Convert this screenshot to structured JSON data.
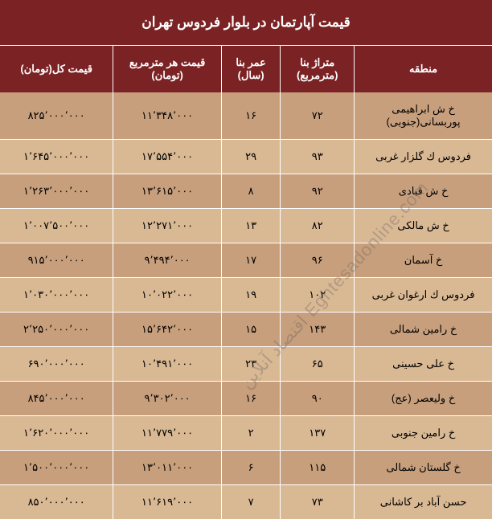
{
  "title": "قیمت آپارتمان در بلوار فردوس تهران",
  "columns": [
    "منطقه",
    "متراژ بنا (مترمربع)",
    "عمر بنا (سال)",
    "قیمت هر مترمربع (تومان)",
    "قیمت کل(تومان)"
  ],
  "rows": [
    {
      "area": "خ ش ابراهیمی پوربسانی(جنوبی)",
      "size": "۷۲",
      "age": "۱۶",
      "ppm": "۱۱٬۳۴۸٬۰۰۰",
      "total": "۸۲۵٬۰۰۰٬۰۰۰"
    },
    {
      "area": "فردوس ك گلزار غربی",
      "size": "۹۳",
      "age": "۲۹",
      "ppm": "۱۷٬۵۵۴٬۰۰۰",
      "total": "۱٬۶۴۵٬۰۰۰٬۰۰۰"
    },
    {
      "area": "خ ش قبادی",
      "size": "۹۲",
      "age": "۸",
      "ppm": "۱۳٬۶۱۵٬۰۰۰",
      "total": "۱٬۲۶۳٬۰۰۰٬۰۰۰"
    },
    {
      "area": "خ ش مالکی",
      "size": "۸۲",
      "age": "۱۳",
      "ppm": "۱۲٬۲۷۱٬۰۰۰",
      "total": "۱٬۰۰۷٬۵۰۰٬۰۰۰"
    },
    {
      "area": "خ آسمان",
      "size": "۹۶",
      "age": "۱۷",
      "ppm": "۹٬۴۹۴٬۰۰۰",
      "total": "۹۱۵٬۰۰۰٬۰۰۰"
    },
    {
      "area": "فردوس ك ارغوان غربی",
      "size": "۱۰۲",
      "age": "۱۹",
      "ppm": "۱۰٬۰۲۲٬۰۰۰",
      "total": "۱٬۰۳۰٬۰۰۰٬۰۰۰"
    },
    {
      "area": "خ رامین شمالی",
      "size": "۱۴۳",
      "age": "۱۵",
      "ppm": "۱۵٬۶۴۲٬۰۰۰",
      "total": "۲٬۲۵۰٬۰۰۰٬۰۰۰"
    },
    {
      "area": "خ علی حسینی",
      "size": "۶۵",
      "age": "۲۳",
      "ppm": "۱۰٬۴۹۱٬۰۰۰",
      "total": "۶۹۰٬۰۰۰٬۰۰۰"
    },
    {
      "area": "خ ولیعصر (عج)",
      "size": "۹۰",
      "age": "۱۶",
      "ppm": "۹٬۳۰۲٬۰۰۰",
      "total": "۸۴۵٬۰۰۰٬۰۰۰"
    },
    {
      "area": "خ رامین جنوبی",
      "size": "۱۳۷",
      "age": "۲",
      "ppm": "۱۱٬۷۷۹٬۰۰۰",
      "total": "۱٬۶۲۰٬۰۰۰٬۰۰۰"
    },
    {
      "area": "خ گلستان شمالی",
      "size": "۱۱۵",
      "age": "۶",
      "ppm": "۱۳٬۰۱۱٬۰۰۰",
      "total": "۱٬۵۰۰٬۰۰۰٬۰۰۰"
    },
    {
      "area": "حسن آباد بر کاشانی",
      "size": "۷۳",
      "age": "۷",
      "ppm": "۱۱٬۶۱۹٬۰۰۰",
      "total": "۸۵۰٬۰۰۰٬۰۰۰"
    }
  ],
  "colors": {
    "dark_header": "#7b2224",
    "row_odd": "#c89f7c",
    "row_even": "#d9b894",
    "title_text": "#ffffff",
    "header_text": "#ffffff",
    "cell_text": "#000000",
    "border": "#ffffff"
  },
  "font": {
    "title_size": 17,
    "header_size": 13,
    "cell_size": 13
  },
  "watermark": "Eghtesadonline.com اقتصاد آنلاین"
}
